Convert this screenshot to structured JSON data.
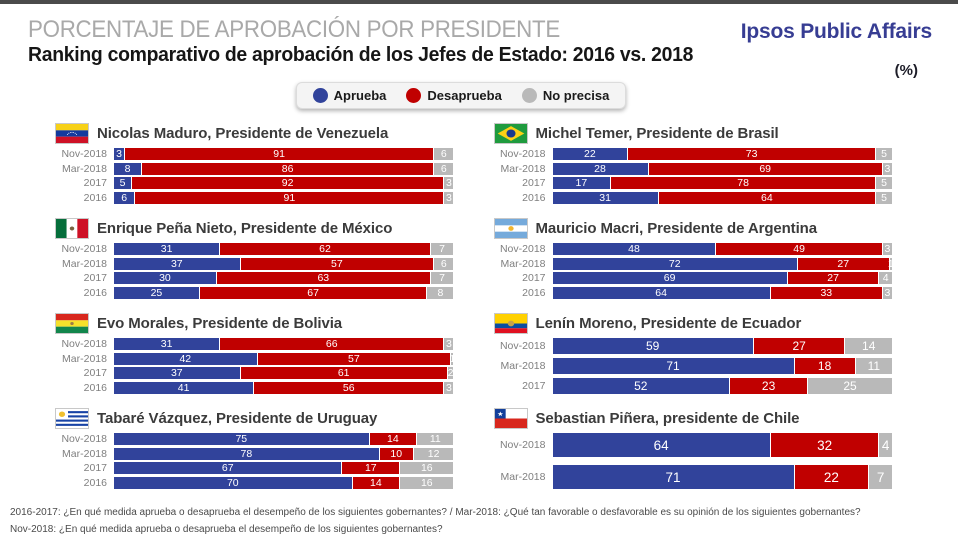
{
  "header": {
    "kicker": "PORCENTAJE DE APROBACIÓN POR PRESIDENTE",
    "title": "Ranking comparativo de aprobación de los Jefes de Estado: 2016 vs. 2018",
    "unit": "(%)",
    "brand": "Ipsos Public Affairs"
  },
  "legend": [
    {
      "label": "Aprueba",
      "color": "#31439b"
    },
    {
      "label": "Desaprueba",
      "color": "#c00000"
    },
    {
      "label": "No precisa",
      "color": "#b9b9b9"
    }
  ],
  "colors": {
    "approve": "#31439b",
    "disapprove": "#c00000",
    "no_answer": "#b9b9b9",
    "brand_blue": "#373d93",
    "top_bar": "#4b4b4b"
  },
  "chart_data": {
    "type": "bar",
    "stacked": true,
    "orientation": "horizontal",
    "unit": "%",
    "value_range": [
      0,
      100
    ],
    "series_names": [
      "Aprueba",
      "Desaprueba",
      "No precisa"
    ],
    "series_colors": [
      "#31439b",
      "#c00000",
      "#b9b9b9"
    ],
    "panels": [
      {
        "id": "venezuela",
        "flag": "venezuela",
        "president": "Nicolas Maduro, Presidente de Venezuela",
        "rows": [
          {
            "period": "Nov-2018",
            "values": [
              3,
              91,
              6
            ]
          },
          {
            "period": "Mar-2018",
            "values": [
              8,
              86,
              6
            ]
          },
          {
            "period": "2017",
            "values": [
              5,
              92,
              3
            ]
          },
          {
            "period": "2016",
            "values": [
              6,
              91,
              3
            ]
          }
        ]
      },
      {
        "id": "brasil",
        "flag": "brazil",
        "president": "Michel Temer, Presidente de Brasil",
        "rows": [
          {
            "period": "Nov-2018",
            "values": [
              22,
              73,
              5
            ]
          },
          {
            "period": "Mar-2018",
            "values": [
              28,
              69,
              3
            ]
          },
          {
            "period": "2017",
            "values": [
              17,
              78,
              5
            ]
          },
          {
            "period": "2016",
            "values": [
              31,
              64,
              5
            ]
          }
        ]
      },
      {
        "id": "mexico",
        "flag": "mexico",
        "president": "Enrique Peña Nieto, Presidente de México",
        "rows": [
          {
            "period": "Nov-2018",
            "values": [
              31,
              62,
              7
            ]
          },
          {
            "period": "Mar-2018",
            "values": [
              37,
              57,
              6
            ]
          },
          {
            "period": "2017",
            "values": [
              30,
              63,
              7
            ]
          },
          {
            "period": "2016",
            "values": [
              25,
              67,
              8
            ]
          }
        ]
      },
      {
        "id": "argentina",
        "flag": "argentina",
        "president": "Mauricio Macri, Presidente de Argentina",
        "rows": [
          {
            "period": "Nov-2018",
            "values": [
              48,
              49,
              3
            ]
          },
          {
            "period": "Mar-2018",
            "values": [
              72,
              27,
              1
            ]
          },
          {
            "period": "2017",
            "values": [
              69,
              27,
              4
            ]
          },
          {
            "period": "2016",
            "values": [
              64,
              33,
              3
            ]
          }
        ]
      },
      {
        "id": "bolivia",
        "flag": "bolivia",
        "president": "Evo Morales, Presidente de Bolivia",
        "rows": [
          {
            "period": "Nov-2018",
            "values": [
              31,
              66,
              3
            ]
          },
          {
            "period": "Mar-2018",
            "values": [
              42,
              57,
              1
            ]
          },
          {
            "period": "2017",
            "values": [
              37,
              61,
              2
            ]
          },
          {
            "period": "2016",
            "values": [
              41,
              56,
              3
            ]
          }
        ]
      },
      {
        "id": "ecuador",
        "flag": "ecuador",
        "president": "Lenín Moreno, Presidente de Ecuador",
        "rows": [
          {
            "period": "Nov-2018",
            "values": [
              59,
              27,
              14
            ]
          },
          {
            "period": "Mar-2018",
            "values": [
              71,
              18,
              11
            ]
          },
          {
            "period": "2017",
            "values": [
              52,
              23,
              25
            ]
          }
        ]
      },
      {
        "id": "uruguay",
        "flag": "uruguay",
        "president": "Tabaré Vázquez, Presidente de Uruguay",
        "rows": [
          {
            "period": "Nov-2018",
            "values": [
              75,
              14,
              11
            ]
          },
          {
            "period": "Mar-2018",
            "values": [
              78,
              10,
              12
            ]
          },
          {
            "period": "2017",
            "values": [
              67,
              17,
              16
            ]
          },
          {
            "period": "2016",
            "values": [
              70,
              14,
              16
            ]
          }
        ]
      },
      {
        "id": "chile",
        "flag": "chile",
        "president": "Sebastian Piñera, presidente de Chile",
        "rows": [
          {
            "period": "Nov-2018",
            "values": [
              64,
              32,
              4
            ]
          },
          {
            "period": "Mar-2018",
            "values": [
              71,
              22,
              7
            ]
          }
        ]
      }
    ]
  },
  "footnotes": [
    "2016-2017: ¿En qué medida aprueba o desaprueba el desempeño de los siguientes gobernantes? / Mar-2018: ¿Qué tan favorable o desfavorable es su opinión de los siguientes gobernantes?",
    "Nov-2018: ¿En qué medida aprueba o desaprueba el desempeño de los siguientes gobernantes?"
  ]
}
